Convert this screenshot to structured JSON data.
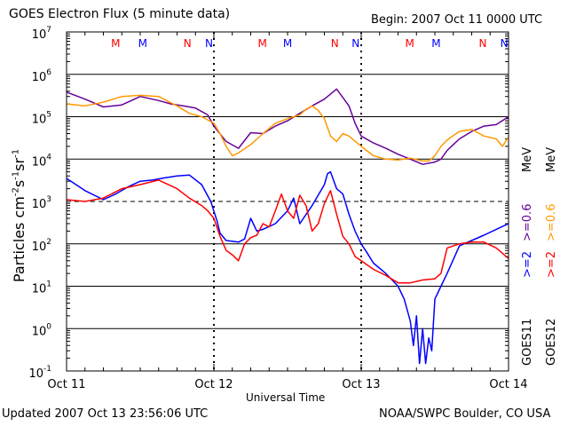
{
  "header": {
    "title": "GOES Electron Flux (5 minute data)",
    "begin": "Begin: 2007 Oct 11 0000 UTC"
  },
  "footer": {
    "updated": "Updated 2007 Oct 13 23:56:06 UTC",
    "credit": "NOAA/SWPC Boulder, CO USA"
  },
  "right_labels": {
    "goes11": "GOES11",
    "goes12": "GOES12",
    "b11_2": ">=2",
    "b11_06": ">=0.6",
    "b12_2": ">=2",
    "b12_06": ">=0.6",
    "unit": "MeV"
  },
  "colors": {
    "goes11_2mev": "#0000ff",
    "goes11_06mev": "#660099",
    "goes12_2mev": "#ff0000",
    "goes12_06mev": "#ff9900",
    "marker_m": "#ff0000",
    "marker_m2": "#0000ff",
    "grid": "#000000"
  },
  "chart_data": {
    "type": "line",
    "title": "GOES Electron Flux (5 minute data)",
    "xlabel": "Universal Time",
    "ylabel": "Particles cm-2s-1sr-1",
    "ylabel_parts": {
      "base": "Particles cm",
      "e1": "-2",
      "s": "s",
      "e2": "-1",
      "sr": "sr",
      "e3": "-1"
    },
    "yscale": "log",
    "ylim": [
      0.1,
      10000000
    ],
    "yticks": [
      {
        "exp": "-1"
      },
      {
        "exp": "0"
      },
      {
        "exp": "1"
      },
      {
        "exp": "2"
      },
      {
        "exp": "3"
      },
      {
        "exp": "4"
      },
      {
        "exp": "5"
      },
      {
        "exp": "6"
      },
      {
        "exp": "7"
      }
    ],
    "xlim_hours": [
      0,
      72
    ],
    "xticks": [
      {
        "hour": 0,
        "label": "Oct 11"
      },
      {
        "hour": 24,
        "label": "Oct 12"
      },
      {
        "hour": 48,
        "label": "Oct 13"
      },
      {
        "hour": 72,
        "label": "Oct 14"
      }
    ],
    "grid": true,
    "dashed_gridlines": [
      1000
    ],
    "markers": [
      {
        "hour": 8.0,
        "label": "M",
        "color": "#ff0000"
      },
      {
        "hour": 12.4,
        "label": "M",
        "color": "#0000ff"
      },
      {
        "hour": 19.7,
        "label": "N",
        "color": "#ff0000"
      },
      {
        "hour": 23.2,
        "label": "N",
        "color": "#0000ff"
      },
      {
        "hour": 31.9,
        "label": "M",
        "color": "#ff0000"
      },
      {
        "hour": 36.0,
        "label": "M",
        "color": "#0000ff"
      },
      {
        "hour": 43.7,
        "label": "N",
        "color": "#ff0000"
      },
      {
        "hour": 47.1,
        "label": "N",
        "color": "#0000ff"
      },
      {
        "hour": 55.9,
        "label": "M",
        "color": "#ff0000"
      },
      {
        "hour": 60.2,
        "label": "M",
        "color": "#0000ff"
      },
      {
        "hour": 67.8,
        "label": "N",
        "color": "#ff0000"
      },
      {
        "hour": 71.3,
        "label": "N",
        "color": "#0000ff"
      }
    ],
    "series": [
      {
        "key": "g11_06",
        "color": "#660099",
        "x": [
          0,
          3,
          6,
          9,
          12,
          15,
          17,
          19,
          21,
          23,
          24,
          26,
          28,
          30,
          32,
          34,
          36,
          38,
          40,
          42,
          44,
          46,
          47,
          48,
          50,
          52,
          54,
          56,
          58,
          60,
          61,
          62,
          63,
          64,
          66,
          68,
          70,
          72
        ],
        "y": [
          380000,
          260000,
          170000,
          190000,
          300000,
          240000,
          200000,
          180000,
          160000,
          110000,
          60000,
          26000,
          18000,
          42000,
          40000,
          60000,
          80000,
          120000,
          180000,
          260000,
          450000,
          180000,
          70000,
          35000,
          24000,
          18000,
          13000,
          10000,
          7500,
          8500,
          10000,
          16000,
          22000,
          30000,
          45000,
          60000,
          65000,
          100000
        ]
      },
      {
        "key": "g12_06",
        "color": "#ff9900",
        "x": [
          0,
          3,
          6,
          9,
          12,
          15,
          18,
          20,
          22,
          24,
          25,
          26,
          27,
          28,
          30,
          32,
          34,
          36,
          38,
          39,
          40,
          41,
          42,
          43,
          44,
          45,
          46,
          48,
          50,
          52,
          54,
          56,
          58,
          59,
          60,
          61,
          62,
          63,
          64,
          66,
          68,
          70,
          71,
          72
        ],
        "y": [
          200000,
          180000,
          220000,
          300000,
          320000,
          300000,
          180000,
          120000,
          100000,
          70000,
          40000,
          20000,
          12000,
          14000,
          22000,
          40000,
          70000,
          90000,
          110000,
          150000,
          180000,
          140000,
          90000,
          35000,
          26000,
          40000,
          35000,
          20000,
          12000,
          10000,
          9500,
          10500,
          9000,
          9000,
          12000,
          20000,
          28000,
          36000,
          45000,
          50000,
          35000,
          30000,
          20000,
          33000
        ]
      },
      {
        "key": "g11_2",
        "color": "#0000ff",
        "x": [
          0,
          3,
          6,
          8,
          10,
          12,
          14,
          16,
          18,
          20,
          22,
          23.5,
          24.5,
          25,
          26,
          28,
          29,
          30,
          31,
          32,
          34,
          36,
          37,
          38,
          40,
          42,
          42.5,
          43,
          44,
          45,
          46,
          47,
          48,
          49,
          50,
          52,
          54,
          55,
          56,
          56.5,
          57,
          57.5,
          58,
          58.5,
          59,
          59.5,
          60,
          61,
          62,
          64,
          66,
          68,
          70,
          72
        ],
        "y": [
          3500,
          1800,
          1100,
          1500,
          2200,
          3000,
          3200,
          3600,
          4000,
          4200,
          2500,
          1000,
          350,
          180,
          120,
          110,
          130,
          400,
          200,
          220,
          300,
          600,
          1200,
          300,
          800,
          2500,
          4500,
          5000,
          2000,
          1500,
          500,
          200,
          100,
          60,
          35,
          20,
          10,
          5,
          1.5,
          0.4,
          2,
          0.15,
          1,
          0.15,
          0.6,
          0.3,
          5,
          10,
          20,
          90,
          120,
          160,
          220,
          300
        ]
      },
      {
        "key": "g12_2",
        "color": "#ff0000",
        "x": [
          0,
          3,
          6,
          9,
          12,
          15,
          18,
          20,
          22,
          23,
          24,
          25,
          26,
          27,
          28,
          29,
          30,
          31,
          32,
          33,
          34,
          35,
          36,
          37,
          38,
          39,
          40,
          41,
          42,
          43,
          44,
          45,
          46,
          47,
          48,
          50,
          52,
          54,
          56,
          58,
          60,
          61,
          62,
          64,
          66,
          68,
          70,
          71,
          72
        ],
        "y": [
          1100,
          1000,
          1200,
          2000,
          2500,
          3200,
          2000,
          1200,
          800,
          600,
          400,
          150,
          70,
          55,
          40,
          100,
          140,
          160,
          300,
          250,
          600,
          1500,
          600,
          400,
          1400,
          800,
          200,
          300,
          900,
          1800,
          500,
          150,
          100,
          50,
          40,
          25,
          18,
          12,
          12,
          14,
          15,
          20,
          80,
          100,
          110,
          110,
          80,
          60,
          45
        ]
      }
    ]
  }
}
